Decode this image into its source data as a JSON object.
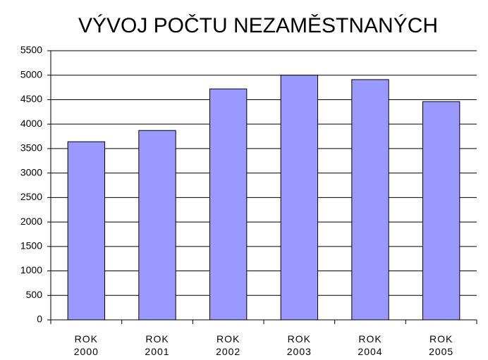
{
  "chart_data": {
    "type": "bar",
    "title": "VÝVOJ POČTU NEZAMĚSTNANÝCH",
    "categories": [
      "ROK 2000",
      "ROK 2001",
      "ROK 2002",
      "ROK 2003",
      "ROK 2004",
      "ROK 2005"
    ],
    "values": [
      3640,
      3870,
      4720,
      5000,
      4910,
      4460
    ],
    "color": "#9999ff",
    "ylim": [
      0,
      5500
    ],
    "yticks": [
      0,
      500,
      1000,
      1500,
      2000,
      2500,
      3000,
      3500,
      4000,
      4500,
      5000,
      5500
    ],
    "grid": true
  }
}
